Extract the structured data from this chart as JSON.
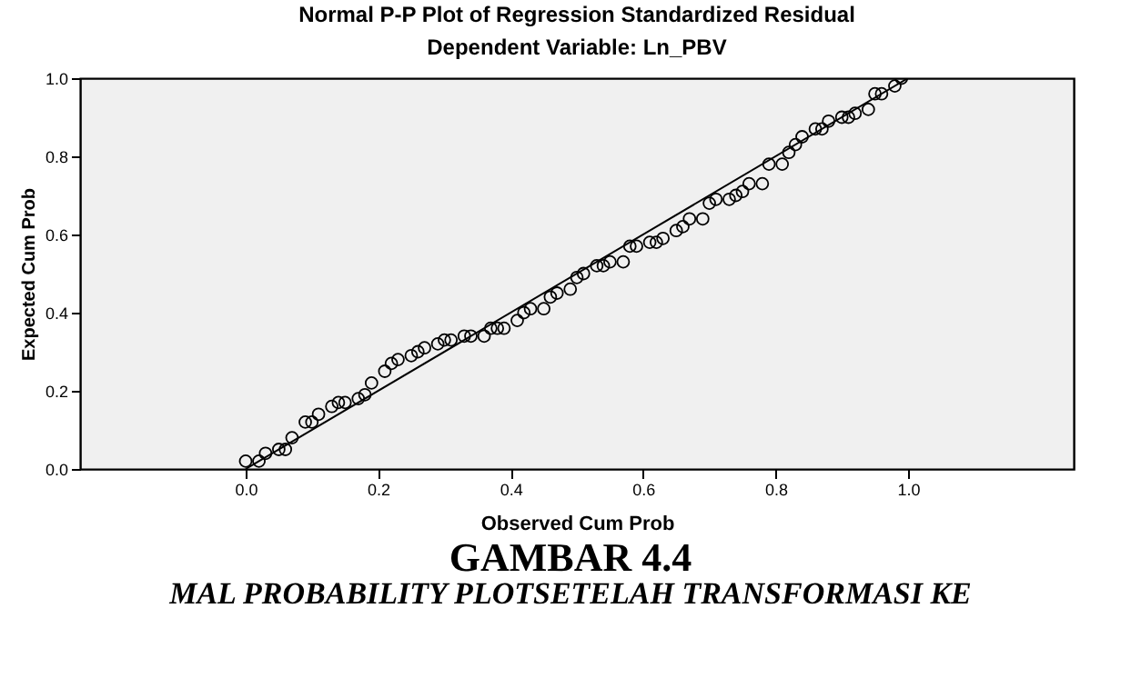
{
  "chart_data": {
    "type": "scatter",
    "title": "Normal P-P Plot of Regression Standardized Residual",
    "subtitle": "Dependent Variable: Ln_PBV",
    "xlabel": "Observed Cum Prob",
    "ylabel": "Expected Cum Prob",
    "xlim": [
      -0.25,
      1.25
    ],
    "ylim": [
      0,
      1
    ],
    "xticks": [
      {
        "value": 0,
        "label": "0.0"
      },
      {
        "value": 0.2,
        "label": "0.2"
      },
      {
        "value": 0.4,
        "label": "0.4"
      },
      {
        "value": 0.6,
        "label": "0.6"
      },
      {
        "value": 0.8,
        "label": "0.8"
      },
      {
        "value": 1,
        "label": "1.0"
      }
    ],
    "yticks": [
      {
        "value": 0,
        "label": "0.0"
      },
      {
        "value": 0.2,
        "label": "0.2"
      },
      {
        "value": 0.4,
        "label": "0.4"
      },
      {
        "value": 0.6,
        "label": "0.6"
      },
      {
        "value": 0.8,
        "label": "0.8"
      },
      {
        "value": 1,
        "label": "1.0"
      }
    ],
    "grid": false,
    "marker": "circle",
    "annotations": [
      "GAMBAR 4.4",
      "MAL PROBABILITY PLOTSETELAH TRANSFORMASI KE"
    ],
    "series": [
      {
        "color": "#000000",
        "x": [
          0.0,
          0.02,
          0.03,
          0.05,
          0.06,
          0.07,
          0.09,
          0.1,
          0.11,
          0.13,
          0.14,
          0.15,
          0.17,
          0.18,
          0.19,
          0.21,
          0.22,
          0.23,
          0.25,
          0.26,
          0.27,
          0.29,
          0.3,
          0.31,
          0.33,
          0.34,
          0.36,
          0.37,
          0.38,
          0.39,
          0.41,
          0.42,
          0.43,
          0.45,
          0.46,
          0.47,
          0.49,
          0.5,
          0.51,
          0.53,
          0.54,
          0.55,
          0.57,
          0.58,
          0.59,
          0.61,
          0.62,
          0.63,
          0.65,
          0.66,
          0.67,
          0.69,
          0.7,
          0.71,
          0.73,
          0.74,
          0.75,
          0.76,
          0.78,
          0.79,
          0.81,
          0.82,
          0.83,
          0.84,
          0.86,
          0.87,
          0.88,
          0.9,
          0.91,
          0.92,
          0.94,
          0.95,
          0.96,
          0.98,
          0.99
        ],
        "values": [
          0.02,
          0.02,
          0.04,
          0.05,
          0.05,
          0.08,
          0.12,
          0.12,
          0.14,
          0.16,
          0.17,
          0.17,
          0.18,
          0.19,
          0.22,
          0.25,
          0.27,
          0.28,
          0.29,
          0.3,
          0.31,
          0.32,
          0.33,
          0.33,
          0.34,
          0.34,
          0.34,
          0.36,
          0.36,
          0.36,
          0.38,
          0.4,
          0.41,
          0.41,
          0.44,
          0.45,
          0.46,
          0.49,
          0.5,
          0.52,
          0.52,
          0.53,
          0.53,
          0.57,
          0.57,
          0.58,
          0.58,
          0.59,
          0.61,
          0.62,
          0.64,
          0.64,
          0.68,
          0.69,
          0.69,
          0.7,
          0.71,
          0.73,
          0.73,
          0.78,
          0.78,
          0.81,
          0.83,
          0.85,
          0.87,
          0.87,
          0.89,
          0.9,
          0.9,
          0.91,
          0.92,
          0.96,
          0.96,
          0.98,
          1.0
        ]
      },
      {
        "type": "line",
        "marker": "none",
        "color": "#000000",
        "x": [
          0,
          1
        ],
        "values": [
          0,
          1
        ]
      }
    ]
  }
}
